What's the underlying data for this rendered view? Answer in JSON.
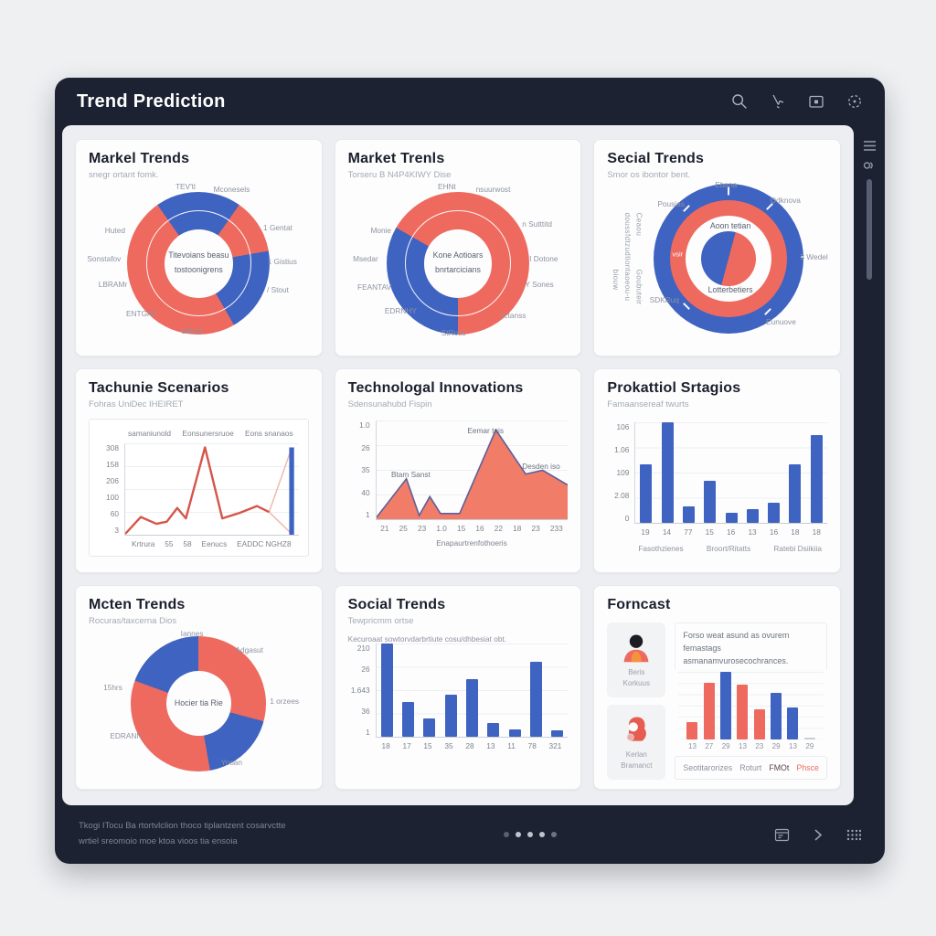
{
  "app": {
    "title": "Trend Prediction",
    "footer": {
      "line1": "Tkogi ITocu Ba rtortvlclion thoco tiplantzent cosarvctte",
      "line2": "wrtiel sreomoio moe ktoa vioos tia ensoia",
      "dots": [
        0.35,
        0.9,
        0.9,
        0.9,
        0.45
      ]
    }
  },
  "colors": {
    "blue": "#3f63c0",
    "coral": "#ee6a5f",
    "coral_light": "#f1b9b1",
    "red_line": "#d6554a",
    "area_fill": "#f0755f",
    "area_stroke": "#5d5f9a",
    "navy": "#1c2232",
    "gray_bar": "#c9cdd4",
    "tab_gray": "#8d93a0",
    "tab_dark": "#5a4446",
    "tab_coral": "#e8705f"
  },
  "chart_data": [
    {
      "type": "donut",
      "title": "Markel Trends",
      "subtitle": "snegr ortant fomk.",
      "segments": [
        {
          "c": "blue",
          "a": 0,
          "b": 35
        },
        {
          "c": "coral",
          "a": 35,
          "b": 80
        },
        {
          "c": "blue",
          "a": 80,
          "b": 150
        },
        {
          "c": "coral",
          "a": 150,
          "b": 325
        },
        {
          "c": "blue",
          "a": 325,
          "b": 360
        }
      ],
      "center": [
        "Titevoians beasu",
        "tostoonigrens"
      ],
      "labels": [
        {
          "t": "TEV'tl",
          "x": 44,
          "y": 4
        },
        {
          "t": "Mconesels",
          "x": 65,
          "y": 6
        },
        {
          "t": "1 Gentat",
          "x": 86,
          "y": 30
        },
        {
          "t": "1 Gistius",
          "x": 88,
          "y": 52
        },
        {
          "t": "/ Stout",
          "x": 86,
          "y": 70
        },
        {
          "t": "DDust",
          "x": 47,
          "y": 96
        },
        {
          "t": "ENTGAY",
          "x": 24,
          "y": 85
        },
        {
          "t": "LBRAMr",
          "x": 11,
          "y": 66
        },
        {
          "t": "Sonstafov",
          "x": 7,
          "y": 50
        },
        {
          "t": "Huted",
          "x": 12,
          "y": 32
        }
      ]
    },
    {
      "type": "donut",
      "title": "Market Trenls",
      "subtitle": "Torseru B N4P4KIWY Dise",
      "segments": [
        {
          "c": "coral",
          "a": 0,
          "b": 180
        },
        {
          "c": "blue",
          "a": 180,
          "b": 300
        },
        {
          "c": "coral",
          "a": 300,
          "b": 360
        }
      ],
      "center": [
        "Kone Aotioars",
        "bnrtarcicians"
      ],
      "labels": [
        {
          "t": "EHNt",
          "x": 45,
          "y": 4
        },
        {
          "t": "nsuurwost",
          "x": 66,
          "y": 6
        },
        {
          "t": "n Sutttitd",
          "x": 86,
          "y": 28
        },
        {
          "t": "I Dotone",
          "x": 89,
          "y": 50
        },
        {
          "t": "Y Sones",
          "x": 87,
          "y": 66
        },
        {
          "t": "7ctanss",
          "x": 75,
          "y": 86
        },
        {
          "t": "StRoss",
          "x": 48,
          "y": 97
        },
        {
          "t": "EDRNHY",
          "x": 24,
          "y": 83
        },
        {
          "t": "FEANTAV",
          "x": 12,
          "y": 68
        },
        {
          "t": "Msedar",
          "x": 8,
          "y": 50
        },
        {
          "t": "Monie",
          "x": 15,
          "y": 32
        }
      ]
    },
    {
      "type": "bullseye",
      "title": "Secial Trends",
      "subtitle": "Smor os ibontor bent.",
      "side_text": [
        "Ceaou doussfdtzudtion",
        "Goubuteir taoeou-u biouw"
      ],
      "inner_top": "Aoon tetian",
      "inner_bottom": "Lotterbetiers",
      "center_split": {
        "from": 15,
        "first": "coral",
        "second": "blue"
      },
      "labels": [
        {
          "t": "Ebana",
          "x": 54,
          "y": 3
        },
        {
          "t": "Odknova",
          "x": 81,
          "y": 13
        },
        {
          "t": "3 Wedel",
          "x": 94,
          "y": 49
        },
        {
          "t": "Eunuove",
          "x": 79,
          "y": 90
        },
        {
          "t": "SDKRuq",
          "x": 26,
          "y": 76
        },
        {
          "t": "Pousias",
          "x": 29,
          "y": 15
        },
        {
          "t": "vsir",
          "x": 32,
          "y": 47,
          "w": 1
        }
      ]
    },
    {
      "type": "line",
      "title": "Tachunie Scenarios",
      "subtitle": "Fohras UniDec IHEIRET",
      "annotations": [
        "samaniunold",
        "Eonsunersruoe",
        "Eons snanaos"
      ],
      "y_ticks": [
        "308",
        "158",
        "206",
        "100",
        "60",
        "3"
      ],
      "x_ticks": [
        "Krtrura",
        "55",
        "58",
        "Eenucs",
        "EADDC NGHZ8"
      ],
      "main": [
        [
          0,
          3
        ],
        [
          0.9,
          65
        ],
        [
          1.8,
          40
        ],
        [
          2.4,
          48
        ],
        [
          3.0,
          98
        ],
        [
          3.5,
          60
        ],
        [
          4.6,
          320
        ],
        [
          5.6,
          60
        ],
        [
          6.6,
          80
        ],
        [
          7.6,
          105
        ],
        [
          8.3,
          83
        ]
      ],
      "light": [
        [
          [
            8.3,
            83
          ],
          [
            9.6,
            318
          ]
        ],
        [
          [
            8.3,
            83
          ],
          [
            9.6,
            3
          ]
        ]
      ],
      "blue_bar_x": 9.6,
      "xmax": 10,
      "ymax": 335
    },
    {
      "type": "area",
      "title": "Technologal Innovations",
      "subtitle": "Sdensunahubd Fispin",
      "y_ticks": [
        "1.0",
        "26",
        "35",
        "40",
        "1"
      ],
      "x_ticks": [
        "21",
        "25",
        "23",
        "1.0",
        "15",
        "16",
        "22",
        "18",
        "23",
        "233"
      ],
      "xlabel": "Enapaurtrenfothoeris",
      "points": [
        [
          0,
          2
        ],
        [
          1.4,
          43
        ],
        [
          2,
          4
        ],
        [
          2.5,
          24
        ],
        [
          3,
          6
        ],
        [
          3.9,
          6
        ],
        [
          5.6,
          95
        ],
        [
          7,
          48
        ],
        [
          7.8,
          52
        ],
        [
          9,
          36
        ]
      ],
      "xmax": 9,
      "ymax": 105,
      "annotations": [
        {
          "t": "Btam Sanst",
          "x": 18,
          "y": 55
        },
        {
          "t": "Eemar tois",
          "x": 57,
          "y": 10
        },
        {
          "t": "Desden iso",
          "x": 86,
          "y": 46
        }
      ]
    },
    {
      "type": "bar",
      "title": "Prokattiol Srtagios",
      "subtitle": "Famaansereaf twurts",
      "y_ticks": [
        "106",
        "1.06",
        "109",
        "2.08",
        "0"
      ],
      "x_ticks": [
        "19",
        "14",
        "77",
        "15",
        "16",
        "13",
        "16",
        "18",
        "18"
      ],
      "values": [
        58,
        100,
        16,
        42,
        10,
        14,
        20,
        58,
        87
      ],
      "bar_color": "blue",
      "group_labels": [
        "Fasothzienes",
        "Broort/Ritatts",
        "Ratebi Dsiikiia"
      ]
    },
    {
      "type": "donut",
      "title": "Mcten Trends",
      "subtitle": "Rocuras/taxcerna Dios",
      "no_ring": true,
      "segments": [
        {
          "c": "coral",
          "a": 0,
          "b": 105
        },
        {
          "c": "blue",
          "a": 105,
          "b": 170
        },
        {
          "c": "coral",
          "a": 170,
          "b": 290
        },
        {
          "c": "blue",
          "a": 290,
          "b": 360
        }
      ],
      "center": [
        "Hocier tia Rie"
      ],
      "labels": [
        {
          "t": "Iannes",
          "x": 47,
          "y": 5
        },
        {
          "t": "Adgasut",
          "x": 73,
          "y": 16
        },
        {
          "t": "1 orzees",
          "x": 89,
          "y": 51
        },
        {
          "t": "Yooan",
          "x": 65,
          "y": 93
        },
        {
          "t": "EDRANN",
          "x": 17,
          "y": 75
        },
        {
          "t": "15hrs",
          "x": 11,
          "y": 42
        }
      ]
    },
    {
      "type": "bar",
      "title": "Social Trends",
      "subtitle": "Tewpricmm ortse",
      "note": "Kecuroaat sowtorvdarbrtiute cosu/dhbesiat obt.",
      "y_ticks": [
        "210",
        "26",
        "1.643",
        "36",
        "1"
      ],
      "x_ticks": [
        "18",
        "17",
        "15",
        "35",
        "28",
        "13",
        "11",
        "78",
        "321"
      ],
      "values": [
        100,
        37,
        20,
        45,
        62,
        15,
        8,
        80,
        7
      ],
      "bar_color": "blue"
    },
    {
      "type": "forecast",
      "title": "Forncast",
      "people": [
        {
          "name": "Beris",
          "sub": "Korkuus"
        },
        {
          "name": "Kerlan",
          "sub": "Bramanct"
        }
      ],
      "text_line1": "Forso weat asund as ovurem femastags",
      "text_line2": "asmanamvurosecochrances.",
      "values": [
        26,
        83,
        100,
        81,
        45,
        69,
        47,
        3
      ],
      "bar_colors": [
        "coral",
        "coral",
        "blue",
        "coral",
        "coral",
        "blue",
        "blue",
        "gray"
      ],
      "x_ticks": [
        "13",
        "27",
        "29",
        "13",
        "23",
        "29",
        "13",
        "29"
      ],
      "tabs": [
        {
          "t": "Seotitarorizes",
          "c": "gray"
        },
        {
          "t": "Roturt",
          "c": "gray"
        },
        {
          "t": "FMOt",
          "c": "dark"
        },
        {
          "t": "Phsce",
          "c": "coral"
        }
      ]
    }
  ]
}
